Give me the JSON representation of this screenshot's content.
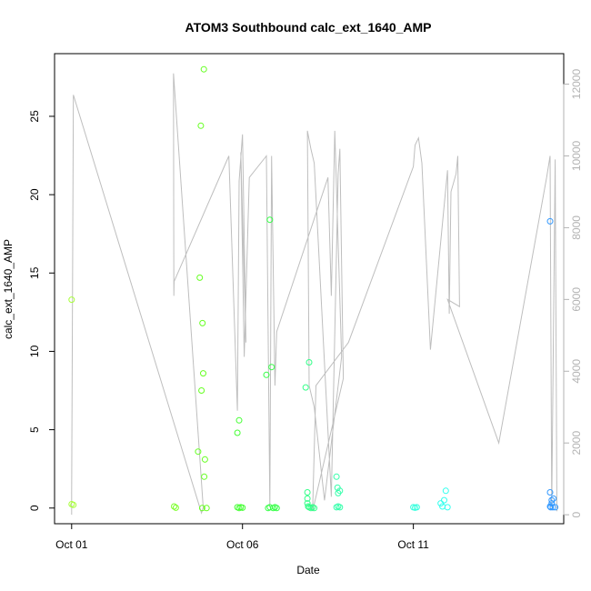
{
  "chart_data": {
    "type": "scatter",
    "title": "ATOM3 Southbound calc_ext_1640_AMP",
    "xlabel": "Date",
    "ylabel": "calc_ext_1640_AMP",
    "x_ticks": [
      "Oct 01",
      "Oct 06",
      "Oct 11"
    ],
    "y_ticks": [
      "0",
      "5",
      "10",
      "15",
      "20",
      "25"
    ],
    "y2_ticks": [
      "0",
      "2000",
      "4000",
      "6000",
      "8000",
      "10000",
      "12000"
    ],
    "xlim": [
      -0.5,
      14.4
    ],
    "ylim": [
      -1.0,
      29.0
    ],
    "y2lim": [
      -250,
      12850
    ],
    "grid": false,
    "colors": {
      "line_series": "#bebebe",
      "axis": "#000000",
      "right_axis": "#b3b3b3"
    },
    "points": [
      {
        "x": 0.0,
        "y": 13.3,
        "c": "#a8ff3a"
      },
      {
        "x": 0.0,
        "y": 0.25,
        "c": "#a8ff3a"
      },
      {
        "x": 0.05,
        "y": 0.2,
        "c": "#a8ff3a"
      },
      {
        "x": 3.0,
        "y": 0.1,
        "c": "#7cff2a"
      },
      {
        "x": 3.05,
        "y": 0.02,
        "c": "#7cff2a"
      },
      {
        "x": 3.7,
        "y": 3.6,
        "c": "#66ff22"
      },
      {
        "x": 3.75,
        "y": 14.7,
        "c": "#66ff22"
      },
      {
        "x": 3.78,
        "y": 24.4,
        "c": "#66ff22"
      },
      {
        "x": 3.8,
        "y": 7.5,
        "c": "#66ff22"
      },
      {
        "x": 3.83,
        "y": 11.8,
        "c": "#66ff22"
      },
      {
        "x": 3.85,
        "y": 8.6,
        "c": "#66ff22"
      },
      {
        "x": 3.87,
        "y": 28.0,
        "c": "#66ff22"
      },
      {
        "x": 3.88,
        "y": 2.0,
        "c": "#66ff22"
      },
      {
        "x": 3.9,
        "y": 3.1,
        "c": "#66ff22"
      },
      {
        "x": 3.82,
        "y": 0.0,
        "c": "#66ff22"
      },
      {
        "x": 3.95,
        "y": 0.0,
        "c": "#66ff22"
      },
      {
        "x": 4.85,
        "y": 4.8,
        "c": "#44ff33"
      },
      {
        "x": 4.9,
        "y": 5.6,
        "c": "#44ff33"
      },
      {
        "x": 4.85,
        "y": 0.05,
        "c": "#44ff33"
      },
      {
        "x": 4.9,
        "y": 0.0,
        "c": "#44ff33"
      },
      {
        "x": 4.95,
        "y": 0.05,
        "c": "#44ff33"
      },
      {
        "x": 5.0,
        "y": 0.02,
        "c": "#44ff33"
      },
      {
        "x": 5.7,
        "y": 8.5,
        "c": "#33ff44"
      },
      {
        "x": 5.8,
        "y": 18.4,
        "c": "#33ff44"
      },
      {
        "x": 5.85,
        "y": 9.0,
        "c": "#33ff44"
      },
      {
        "x": 5.75,
        "y": 0.0,
        "c": "#33ff44"
      },
      {
        "x": 5.8,
        "y": 0.05,
        "c": "#33ff44"
      },
      {
        "x": 5.9,
        "y": 0.0,
        "c": "#33ff44"
      },
      {
        "x": 5.95,
        "y": 0.05,
        "c": "#33ff44"
      },
      {
        "x": 6.0,
        "y": 0.0,
        "c": "#33ff44"
      },
      {
        "x": 6.85,
        "y": 7.7,
        "c": "#33ff88"
      },
      {
        "x": 6.9,
        "y": 1.0,
        "c": "#33ff88"
      },
      {
        "x": 6.95,
        "y": 9.3,
        "c": "#33ff88"
      },
      {
        "x": 6.9,
        "y": 0.6,
        "c": "#33ff88"
      },
      {
        "x": 6.9,
        "y": 0.3,
        "c": "#33ff88"
      },
      {
        "x": 6.92,
        "y": 0.1,
        "c": "#33ff88"
      },
      {
        "x": 6.95,
        "y": 0.05,
        "c": "#33ff88"
      },
      {
        "x": 7.0,
        "y": 0.0,
        "c": "#33ff88"
      },
      {
        "x": 7.05,
        "y": 0.05,
        "c": "#33ff88"
      },
      {
        "x": 7.1,
        "y": 0.0,
        "c": "#33ff88"
      },
      {
        "x": 7.75,
        "y": 2.0,
        "c": "#33ffaa"
      },
      {
        "x": 7.78,
        "y": 1.3,
        "c": "#33ffaa"
      },
      {
        "x": 7.85,
        "y": 1.1,
        "c": "#33ffaa"
      },
      {
        "x": 7.8,
        "y": 0.95,
        "c": "#33ffaa"
      },
      {
        "x": 7.75,
        "y": 0.05,
        "c": "#33ffaa"
      },
      {
        "x": 7.8,
        "y": 0.1,
        "c": "#33ffaa"
      },
      {
        "x": 7.85,
        "y": 0.05,
        "c": "#33ffaa"
      },
      {
        "x": 10.0,
        "y": 0.05,
        "c": "#33ffdd"
      },
      {
        "x": 10.05,
        "y": 0.02,
        "c": "#33ffdd"
      },
      {
        "x": 10.1,
        "y": 0.05,
        "c": "#33ffdd"
      },
      {
        "x": 10.8,
        "y": 0.3,
        "c": "#33ffee"
      },
      {
        "x": 10.85,
        "y": 0.1,
        "c": "#33ffee"
      },
      {
        "x": 10.9,
        "y": 0.5,
        "c": "#33ffee"
      },
      {
        "x": 10.95,
        "y": 1.1,
        "c": "#33ffee"
      },
      {
        "x": 11.0,
        "y": 0.05,
        "c": "#33ffee"
      },
      {
        "x": 14.0,
        "y": 18.3,
        "c": "#3399ff"
      },
      {
        "x": 14.0,
        "y": 1.0,
        "c": "#3399ff"
      },
      {
        "x": 14.05,
        "y": 0.5,
        "c": "#3399ff"
      },
      {
        "x": 14.1,
        "y": 0.6,
        "c": "#3399ff"
      },
      {
        "x": 14.05,
        "y": 0.3,
        "c": "#3399ff"
      },
      {
        "x": 14.0,
        "y": 0.1,
        "c": "#3399ff"
      },
      {
        "x": 14.02,
        "y": 0.05,
        "c": "#3399ff"
      },
      {
        "x": 14.08,
        "y": 0.05,
        "c": "#3399ff"
      },
      {
        "x": 14.15,
        "y": 0.05,
        "c": "#3399ff"
      }
    ],
    "line_y2": [
      [
        0.0,
        0
      ],
      [
        0.0,
        600
      ],
      [
        0.05,
        11700
      ],
      [
        3.8,
        50
      ],
      [
        3.85,
        200
      ],
      [
        2.98,
        12300
      ],
      [
        2.99,
        6100
      ],
      [
        3.0,
        6500
      ],
      [
        4.6,
        10000
      ],
      [
        4.85,
        2900
      ],
      [
        4.9,
        9300
      ],
      [
        5.0,
        10600
      ],
      [
        5.1,
        4800
      ],
      [
        4.95,
        10100
      ],
      [
        5.05,
        4400
      ],
      [
        5.2,
        9400
      ],
      [
        5.7,
        10000
      ],
      [
        5.8,
        200
      ],
      [
        5.85,
        10000
      ],
      [
        5.95,
        3600
      ],
      [
        6.0,
        5100
      ],
      [
        7.5,
        9400
      ],
      [
        7.6,
        6100
      ],
      [
        7.7,
        10700
      ],
      [
        7.9,
        4400
      ],
      [
        7.4,
        400
      ],
      [
        7.1,
        3000
      ],
      [
        6.95,
        3600
      ],
      [
        6.9,
        10700
      ],
      [
        7.0,
        10200
      ],
      [
        7.1,
        9800
      ],
      [
        7.6,
        500
      ],
      [
        7.8,
        9500
      ],
      [
        7.85,
        10200
      ],
      [
        7.95,
        3800
      ],
      [
        7.05,
        100
      ],
      [
        7.15,
        3600
      ],
      [
        8.1,
        4800
      ],
      [
        10.0,
        9700
      ],
      [
        10.05,
        10300
      ],
      [
        10.15,
        10500
      ],
      [
        10.25,
        9800
      ],
      [
        10.5,
        4600
      ],
      [
        11.0,
        9600
      ],
      [
        11.05,
        5600
      ],
      [
        11.1,
        9000
      ],
      [
        11.25,
        9500
      ],
      [
        11.3,
        10000
      ],
      [
        11.35,
        5800
      ],
      [
        11.0,
        6000
      ],
      [
        12.5,
        2000
      ],
      [
        13.9,
        9400
      ],
      [
        14.0,
        10000
      ],
      [
        14.05,
        200
      ],
      [
        14.15,
        9900
      ],
      [
        14.2,
        100
      ]
    ]
  }
}
